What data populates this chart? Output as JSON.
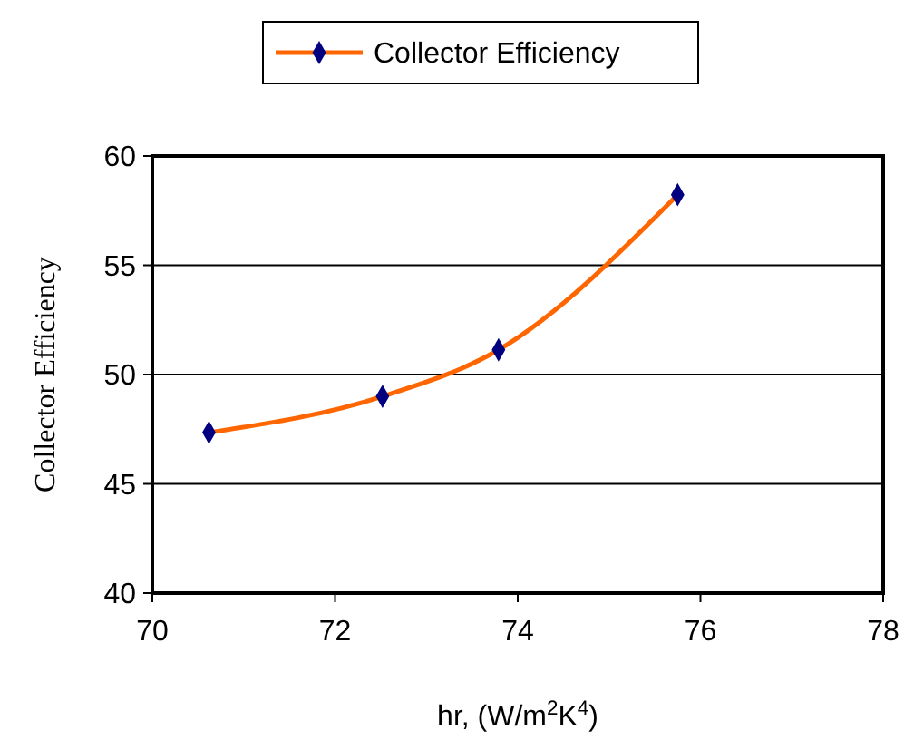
{
  "chart_data": {
    "type": "line",
    "xlabel": "hr, (W/m$^{2}$K$^{4}$)",
    "ylabel": "Collector Efficiency",
    "x": [
      70.62,
      72.52,
      73.79,
      75.75
    ],
    "series": [
      {
        "name": "Collector Efficiency",
        "color": "#ff6600",
        "values": [
          47.35,
          49.0,
          51.13,
          58.23
        ]
      }
    ],
    "xlim": [
      70,
      78
    ],
    "xticks": [
      70,
      72,
      74,
      76,
      78
    ],
    "ylim": [
      40,
      60
    ],
    "yticks": [
      40,
      45,
      50,
      55,
      60
    ],
    "grid": "y",
    "legend": "top",
    "marker": "diamond",
    "line_style": "solid"
  }
}
